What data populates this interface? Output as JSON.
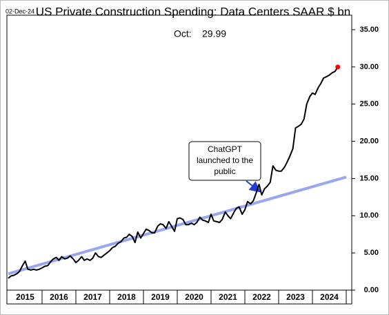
{
  "chart_data": {
    "type": "line",
    "title": "US Private Construction Spending: Data Centers SAAR $ bn",
    "date_label": "02-Dec-24",
    "latest_label": "Oct:",
    "callout": [
      "ChatGPT",
      "launched to the",
      "public"
    ],
    "xlim": [
      2015,
      2025
    ],
    "xticks": [
      {
        "value": 2015.5,
        "label": "2015"
      },
      {
        "value": 2016.5,
        "label": "2016"
      },
      {
        "value": 2017.5,
        "label": "2017"
      },
      {
        "value": 2018.5,
        "label": "2018"
      },
      {
        "value": 2019.5,
        "label": "2019"
      },
      {
        "value": 2020.5,
        "label": "2020"
      },
      {
        "value": 2021.5,
        "label": "2021"
      },
      {
        "value": 2022.5,
        "label": "2022"
      },
      {
        "value": 2023.5,
        "label": "2023"
      },
      {
        "value": 2024.5,
        "label": "2024"
      }
    ],
    "ylim": [
      0,
      35
    ],
    "yticks": [
      {
        "value": 0,
        "label": "0.00"
      },
      {
        "value": 5,
        "label": "5.00"
      },
      {
        "value": 10,
        "label": "10.00"
      },
      {
        "value": 15,
        "label": "15.00"
      },
      {
        "value": 20,
        "label": "20.00"
      },
      {
        "value": 25,
        "label": "25.00"
      },
      {
        "value": 30,
        "label": "30.00"
      },
      {
        "value": 35,
        "label": "35.00"
      }
    ],
    "series": [
      {
        "color": "#000000",
        "end_color": "#ff0000",
        "x": [
          2015.0,
          2015.08,
          2015.17,
          2015.25,
          2015.33,
          2015.42,
          2015.5,
          2015.58,
          2015.67,
          2015.75,
          2015.83,
          2015.92,
          2016.0,
          2016.08,
          2016.17,
          2016.25,
          2016.33,
          2016.42,
          2016.5,
          2016.58,
          2016.67,
          2016.75,
          2016.83,
          2016.92,
          2017.0,
          2017.08,
          2017.17,
          2017.25,
          2017.33,
          2017.42,
          2017.5,
          2017.58,
          2017.67,
          2017.75,
          2017.83,
          2017.92,
          2018.0,
          2018.08,
          2018.17,
          2018.25,
          2018.33,
          2018.42,
          2018.5,
          2018.58,
          2018.67,
          2018.75,
          2018.83,
          2018.92,
          2019.0,
          2019.08,
          2019.17,
          2019.25,
          2019.33,
          2019.42,
          2019.5,
          2019.58,
          2019.67,
          2019.75,
          2019.83,
          2019.92,
          2020.0,
          2020.08,
          2020.17,
          2020.25,
          2020.33,
          2020.42,
          2020.5,
          2020.58,
          2020.67,
          2020.75,
          2020.83,
          2020.92,
          2021.0,
          2021.08,
          2021.17,
          2021.25,
          2021.33,
          2021.42,
          2021.5,
          2021.58,
          2021.67,
          2021.75,
          2021.83,
          2021.92,
          2022.0,
          2022.08,
          2022.17,
          2022.25,
          2022.33,
          2022.42,
          2022.5,
          2022.58,
          2022.67,
          2022.75,
          2022.83,
          2022.92,
          2023.0,
          2023.08,
          2023.17,
          2023.25,
          2023.33,
          2023.42,
          2023.5,
          2023.58,
          2023.67,
          2023.75,
          2023.83,
          2023.92,
          2024.0,
          2024.08,
          2024.17,
          2024.25,
          2024.33,
          2024.42,
          2024.5,
          2024.58,
          2024.67,
          2024.75
        ],
        "values": [
          1.6,
          1.9,
          2.0,
          2.2,
          2.5,
          3.3,
          3.9,
          2.8,
          2.7,
          2.8,
          2.7,
          2.8,
          3.0,
          3.2,
          3.3,
          3.8,
          4.2,
          4.4,
          4.0,
          4.5,
          4.2,
          4.3,
          4.6,
          4.2,
          3.7,
          4.0,
          4.5,
          4.0,
          4.2,
          4.0,
          4.3,
          5.0,
          4.5,
          4.4,
          4.7,
          5.0,
          5.3,
          5.7,
          5.9,
          6.3,
          6.5,
          7.0,
          7.1,
          7.5,
          7.2,
          6.4,
          7.8,
          7.0,
          7.6,
          8.2,
          8.0,
          7.7,
          7.7,
          8.6,
          8.9,
          8.8,
          8.3,
          9.2,
          8.6,
          7.9,
          9.6,
          9.7,
          9.5,
          8.8,
          8.8,
          9.0,
          8.8,
          9.1,
          9.8,
          9.4,
          9.3,
          9.1,
          10.2,
          9.3,
          9.2,
          9.1,
          9.5,
          10.5,
          10.0,
          9.6,
          10.4,
          11.0,
          11.2,
          10.2,
          10.8,
          11.9,
          11.6,
          12.0,
          13.0,
          14.2,
          12.8,
          13.6,
          14.0,
          14.5,
          16.7,
          16.1,
          16.0,
          16.0,
          16.5,
          17.2,
          18.0,
          19.0,
          21.8,
          22.0,
          22.3,
          23.0,
          25.0,
          26.0,
          26.5,
          26.3,
          27.2,
          27.8,
          28.5,
          28.7,
          28.9,
          29.2,
          29.4,
          29.99
        ]
      },
      {
        "color": "#99a6f0",
        "x": [
          2015,
          2025
        ],
        "values": [
          2.2,
          15.2
        ]
      }
    ]
  }
}
